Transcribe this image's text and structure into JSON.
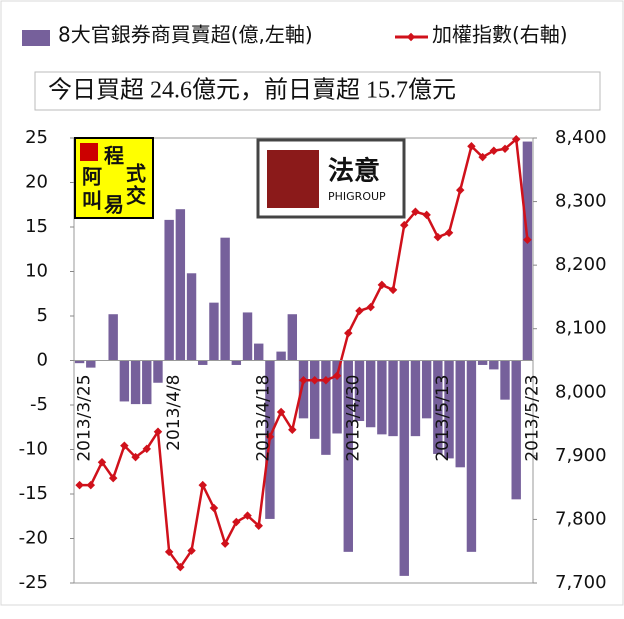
{
  "chart_data": {
    "type": "bar-line",
    "subtitle": "今日買超 24.6億元，前日賣超 15.7億元",
    "watermarks": [
      "程",
      "式",
      "阿",
      "叫",
      "交",
      "易",
      "法意",
      "PHIGROUP"
    ],
    "categories": [
      "2013/3/25",
      null,
      null,
      null,
      null,
      null,
      null,
      null,
      "2013/4/8",
      null,
      null,
      null,
      null,
      null,
      null,
      null,
      "2013/4/18",
      null,
      null,
      null,
      null,
      null,
      null,
      null,
      "2013/4/30",
      null,
      null,
      null,
      null,
      null,
      null,
      null,
      "2013/5/13",
      null,
      null,
      null,
      null,
      null,
      null,
      null,
      "2013/5/23"
    ],
    "series": [
      {
        "name": "8大官銀券商買賣超(億,左軸)",
        "color": "#76609b",
        "axis": "y",
        "type": "bar",
        "values": [
          -0.3,
          -0.8,
          0,
          5.2,
          -4.6,
          -4.9,
          -4.9,
          -2.5,
          15.8,
          17,
          9.8,
          -0.5,
          6.5,
          13.8,
          -0.5,
          5.4,
          1.9,
          -17.8,
          1,
          5.2,
          -6.5,
          -8.8,
          -10.6,
          -8.2,
          -21.5,
          -6.8,
          -7.5,
          -8.3,
          -8.5,
          -24.2,
          -8.5,
          -6.5,
          -10.5,
          -11,
          -12,
          -21.5,
          -0.5,
          -1,
          -4.4,
          -15.6,
          24.6
        ]
      },
      {
        "name": "加權指數(右軸)",
        "color": "#d0111b",
        "axis": "y2",
        "type": "line",
        "values": [
          7854,
          7854,
          7890,
          7865,
          7916,
          7898,
          7911,
          7938,
          7749,
          7725,
          7751,
          7854,
          7818,
          7762,
          7796,
          7806,
          7790,
          7930,
          7969,
          7941,
          8019,
          8019,
          8019,
          8026,
          8093,
          8128,
          8134,
          8169,
          8161,
          8263,
          8284,
          8279,
          8244,
          8251,
          8318,
          8387,
          8370,
          8380,
          8383,
          8398,
          8240
        ]
      }
    ],
    "ylim": [
      -25,
      25
    ],
    "yticks": [
      -25,
      -20,
      -15,
      -10,
      -5,
      0,
      5,
      10,
      15,
      20,
      25
    ],
    "y2lim": [
      7700,
      8400
    ],
    "y2ticks": [
      {
        "value": 7700,
        "label": "7,700"
      },
      {
        "value": 7800,
        "label": "7,800"
      },
      {
        "value": 7900,
        "label": "7,900"
      },
      {
        "value": 8000,
        "label": "8,000"
      },
      {
        "value": 8100,
        "label": "8,100"
      },
      {
        "value": 8200,
        "label": "8,200"
      },
      {
        "value": 8300,
        "label": "8,300"
      },
      {
        "value": 8400,
        "label": "8,400"
      }
    ],
    "legend": "top"
  }
}
